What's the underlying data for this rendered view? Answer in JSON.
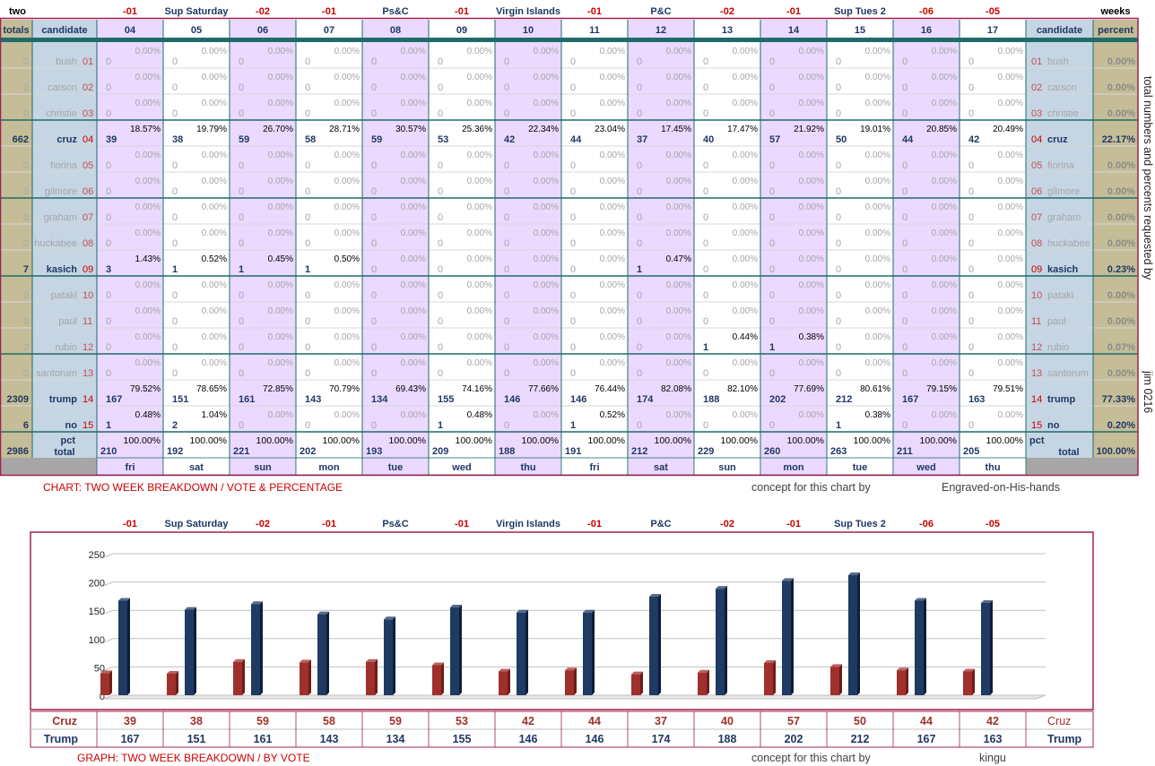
{
  "top_labels": {
    "left": "two",
    "right": "weeks",
    "events": [
      "-01",
      "Sup Saturday",
      "-02",
      "-01",
      "Ps&C",
      "-01",
      "Virgin Islands",
      "-01",
      "P&C",
      "-02",
      "-01",
      "Sup Tues 2",
      "-06",
      "-05"
    ]
  },
  "headers": {
    "totals": "totals",
    "candidate": "candidate",
    "cols": [
      "04",
      "05",
      "06",
      "07",
      "08",
      "09",
      "10",
      "11",
      "12",
      "13",
      "14",
      "15",
      "16",
      "17"
    ],
    "percent": "percent"
  },
  "candidates": [
    {
      "name": "bush",
      "num": "01",
      "total": "0",
      "pct": "0.00%",
      "active": false,
      "votes": [
        "0",
        "0",
        "0",
        "0",
        "0",
        "0",
        "0",
        "0",
        "0",
        "0",
        "0",
        "0",
        "0",
        "0"
      ],
      "pcts": [
        "0.00%",
        "0.00%",
        "0.00%",
        "0.00%",
        "0.00%",
        "0.00%",
        "0.00%",
        "0.00%",
        "0.00%",
        "0.00%",
        "0.00%",
        "0.00%",
        "0.00%",
        "0.00%"
      ]
    },
    {
      "name": "carson",
      "num": "02",
      "total": "0",
      "pct": "0.00%",
      "active": false,
      "votes": [
        "0",
        "0",
        "0",
        "0",
        "0",
        "0",
        "0",
        "0",
        "0",
        "0",
        "0",
        "0",
        "0",
        "0"
      ],
      "pcts": [
        "0.00%",
        "0.00%",
        "0.00%",
        "0.00%",
        "0.00%",
        "0.00%",
        "0.00%",
        "0.00%",
        "0.00%",
        "0.00%",
        "0.00%",
        "0.00%",
        "0.00%",
        "0.00%"
      ]
    },
    {
      "name": "christie",
      "num": "03",
      "total": "0",
      "pct": "0.00%",
      "active": false,
      "votes": [
        "0",
        "0",
        "0",
        "0",
        "0",
        "0",
        "0",
        "0",
        "0",
        "0",
        "0",
        "0",
        "0",
        "0"
      ],
      "pcts": [
        "0.00%",
        "0.00%",
        "0.00%",
        "0.00%",
        "0.00%",
        "0.00%",
        "0.00%",
        "0.00%",
        "0.00%",
        "0.00%",
        "0.00%",
        "0.00%",
        "0.00%",
        "0.00%"
      ]
    },
    {
      "name": "cruz",
      "num": "04",
      "total": "662",
      "pct": "22.17%",
      "active": true,
      "votes": [
        "39",
        "38",
        "59",
        "58",
        "59",
        "53",
        "42",
        "44",
        "37",
        "40",
        "57",
        "50",
        "44",
        "42"
      ],
      "pcts": [
        "18.57%",
        "19.79%",
        "26.70%",
        "28.71%",
        "30.57%",
        "25.36%",
        "22.34%",
        "23.04%",
        "17.45%",
        "17.47%",
        "21.92%",
        "19.01%",
        "20.85%",
        "20.49%"
      ]
    },
    {
      "name": "fiorina",
      "num": "05",
      "total": "0",
      "pct": "0.00%",
      "active": false,
      "votes": [
        "0",
        "0",
        "0",
        "0",
        "0",
        "0",
        "0",
        "0",
        "0",
        "0",
        "0",
        "0",
        "0",
        "0"
      ],
      "pcts": [
        "0.00%",
        "0.00%",
        "0.00%",
        "0.00%",
        "0.00%",
        "0.00%",
        "0.00%",
        "0.00%",
        "0.00%",
        "0.00%",
        "0.00%",
        "0.00%",
        "0.00%",
        "0.00%"
      ]
    },
    {
      "name": "gilmore",
      "num": "06",
      "total": "0",
      "pct": "0.00%",
      "active": false,
      "votes": [
        "0",
        "0",
        "0",
        "0",
        "0",
        "0",
        "0",
        "0",
        "0",
        "0",
        "0",
        "0",
        "0",
        "0"
      ],
      "pcts": [
        "0.00%",
        "0.00%",
        "0.00%",
        "0.00%",
        "0.00%",
        "0.00%",
        "0.00%",
        "0.00%",
        "0.00%",
        "0.00%",
        "0.00%",
        "0.00%",
        "0.00%",
        "0.00%"
      ]
    },
    {
      "name": "graham",
      "num": "07",
      "total": "0",
      "pct": "0.00%",
      "active": false,
      "votes": [
        "0",
        "0",
        "0",
        "0",
        "0",
        "0",
        "0",
        "0",
        "0",
        "0",
        "0",
        "0",
        "0",
        "0"
      ],
      "pcts": [
        "0.00%",
        "0.00%",
        "0.00%",
        "0.00%",
        "0.00%",
        "0.00%",
        "0.00%",
        "0.00%",
        "0.00%",
        "0.00%",
        "0.00%",
        "0.00%",
        "0.00%",
        "0.00%"
      ]
    },
    {
      "name": "huckabee",
      "num": "08",
      "total": "0",
      "pct": "0.00%",
      "active": false,
      "votes": [
        "0",
        "0",
        "0",
        "0",
        "0",
        "0",
        "0",
        "0",
        "0",
        "0",
        "0",
        "0",
        "0",
        "0"
      ],
      "pcts": [
        "0.00%",
        "0.00%",
        "0.00%",
        "0.00%",
        "0.00%",
        "0.00%",
        "0.00%",
        "0.00%",
        "0.00%",
        "0.00%",
        "0.00%",
        "0.00%",
        "0.00%",
        "0.00%"
      ]
    },
    {
      "name": "kasich",
      "num": "09",
      "total": "7",
      "pct": "0.23%",
      "active": true,
      "votes": [
        "3",
        "1",
        "1",
        "1",
        "0",
        "0",
        "0",
        "0",
        "1",
        "0",
        "0",
        "0",
        "0",
        "0"
      ],
      "pcts": [
        "1.43%",
        "0.52%",
        "0.45%",
        "0.50%",
        "0.00%",
        "0.00%",
        "0.00%",
        "0.00%",
        "0.47%",
        "0.00%",
        "0.00%",
        "0.00%",
        "0.00%",
        "0.00%"
      ]
    },
    {
      "name": "pataki",
      "num": "10",
      "total": "0",
      "pct": "0.00%",
      "active": false,
      "votes": [
        "0",
        "0",
        "0",
        "0",
        "0",
        "0",
        "0",
        "0",
        "0",
        "0",
        "0",
        "0",
        "0",
        "0"
      ],
      "pcts": [
        "0.00%",
        "0.00%",
        "0.00%",
        "0.00%",
        "0.00%",
        "0.00%",
        "0.00%",
        "0.00%",
        "0.00%",
        "0.00%",
        "0.00%",
        "0.00%",
        "0.00%",
        "0.00%"
      ]
    },
    {
      "name": "paul",
      "num": "11",
      "total": "0",
      "pct": "0.00%",
      "active": false,
      "votes": [
        "0",
        "0",
        "0",
        "0",
        "0",
        "0",
        "0",
        "0",
        "0",
        "0",
        "0",
        "0",
        "0",
        "0"
      ],
      "pcts": [
        "0.00%",
        "0.00%",
        "0.00%",
        "0.00%",
        "0.00%",
        "0.00%",
        "0.00%",
        "0.00%",
        "0.00%",
        "0.00%",
        "0.00%",
        "0.00%",
        "0.00%",
        "0.00%"
      ]
    },
    {
      "name": "rubio",
      "num": "12",
      "total": "2",
      "pct": "0.07%",
      "active": false,
      "votes": [
        "0",
        "0",
        "0",
        "0",
        "0",
        "0",
        "0",
        "0",
        "0",
        "1",
        "1",
        "0",
        "0",
        "0"
      ],
      "pcts": [
        "0.00%",
        "0.00%",
        "0.00%",
        "0.00%",
        "0.00%",
        "0.00%",
        "0.00%",
        "0.00%",
        "0.00%",
        "0.44%",
        "0.38%",
        "0.00%",
        "0.00%",
        "0.00%"
      ]
    },
    {
      "name": "santorum",
      "num": "13",
      "total": "0",
      "pct": "0.00%",
      "active": false,
      "votes": [
        "0",
        "0",
        "0",
        "0",
        "0",
        "0",
        "0",
        "0",
        "0",
        "0",
        "0",
        "0",
        "0",
        "0"
      ],
      "pcts": [
        "0.00%",
        "0.00%",
        "0.00%",
        "0.00%",
        "0.00%",
        "0.00%",
        "0.00%",
        "0.00%",
        "0.00%",
        "0.00%",
        "0.00%",
        "0.00%",
        "0.00%",
        "0.00%"
      ]
    },
    {
      "name": "trump",
      "num": "14",
      "total": "2309",
      "pct": "77.33%",
      "active": true,
      "votes": [
        "167",
        "151",
        "161",
        "143",
        "134",
        "155",
        "146",
        "146",
        "174",
        "188",
        "202",
        "212",
        "167",
        "163"
      ],
      "pcts": [
        "79.52%",
        "78.65%",
        "72.85%",
        "70.79%",
        "69.43%",
        "74.16%",
        "77.66%",
        "76.44%",
        "82.08%",
        "82.10%",
        "77.69%",
        "80.61%",
        "79.15%",
        "79.51%"
      ]
    },
    {
      "name": "no",
      "num": "15",
      "total": "6",
      "pct": "0.20%",
      "active": true,
      "votes": [
        "1",
        "2",
        "0",
        "0",
        "0",
        "1",
        "0",
        "1",
        "0",
        "0",
        "0",
        "1",
        "0",
        "0"
      ],
      "pcts": [
        "0.48%",
        "1.04%",
        "0.00%",
        "0.00%",
        "0.00%",
        "0.48%",
        "0.00%",
        "0.52%",
        "0.00%",
        "0.00%",
        "0.00%",
        "0.38%",
        "0.00%",
        "0.00%"
      ]
    }
  ],
  "totals_row": {
    "pct_label": "pct",
    "label": "total",
    "grand_total": "2986",
    "grand_pct": "100.00%",
    "votes": [
      "210",
      "192",
      "221",
      "202",
      "193",
      "209",
      "188",
      "191",
      "212",
      "229",
      "260",
      "263",
      "211",
      "205"
    ],
    "pcts": [
      "100.00%",
      "100.00%",
      "100.00%",
      "100.00%",
      "100.00%",
      "100.00%",
      "100.00%",
      "100.00%",
      "100.00%",
      "100.00%",
      "100.00%",
      "100.00%",
      "100.00%",
      "100.00%"
    ]
  },
  "days": [
    "fri",
    "sat",
    "sun",
    "mon",
    "tue",
    "wed",
    "thu",
    "fri",
    "sat",
    "sun",
    "mon",
    "tue",
    "wed",
    "thu"
  ],
  "side_note": "total numbers and percents requested by",
  "side_note_name": "jim 0216",
  "chart1_caption": "CHART: TWO WEEK BREAKDOWN / VOTE & PERCENTAGE",
  "concept_label": "concept for this chart by",
  "chart1_credit": "Engraved-on-His-hands",
  "chart2_caption": "GRAPH: TWO WEEK BREAKDOWN / BY VOTE",
  "chart2_credit": "kingu",
  "colors": {
    "cruz": "#A0302C",
    "trump": "#1F3A63",
    "red_text": "#CC0000",
    "navy_text": "#1F3864",
    "lavender": "#EBD9FF",
    "blue_cell": "#C5D5E4",
    "tan": "#C4BD97",
    "border": "#A02050",
    "teal": "#1F6B6B"
  },
  "chart_data": {
    "type": "bar",
    "categories": [
      "-01",
      "Sup Saturday",
      "-02",
      "-01",
      "Ps&C",
      "-01",
      "Virgin Islands",
      "-01",
      "P&C",
      "-02",
      "-01",
      "Sup Tues 2",
      "-06",
      "-05"
    ],
    "series": [
      {
        "name": "Cruz",
        "values": [
          39,
          38,
          59,
          58,
          59,
          53,
          42,
          44,
          37,
          40,
          57,
          50,
          44,
          42
        ]
      },
      {
        "name": "Trump",
        "values": [
          167,
          151,
          161,
          143,
          134,
          155,
          146,
          146,
          174,
          188,
          202,
          212,
          167,
          163
        ]
      }
    ],
    "yticks": [
      "0",
      "50",
      "100",
      "150",
      "200",
      "250"
    ],
    "ylim": [
      0,
      250
    ],
    "grid": true
  }
}
